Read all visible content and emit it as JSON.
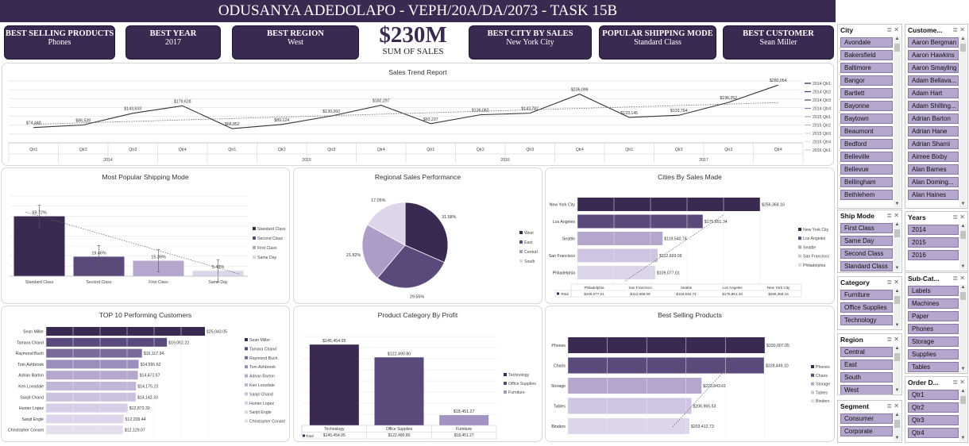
{
  "header": {
    "title": "ODUSANYA ADEDOLAPO - VEPH/20A/DA/2073 - TASK 15B"
  },
  "kpis": [
    {
      "label": "BEST SELLING PRODUCTS",
      "value": "Phones"
    },
    {
      "label": "BEST YEAR",
      "value": "2017"
    },
    {
      "label": "BEST REGION",
      "value": "West"
    },
    {
      "label": "BEST CITY BY SALES",
      "value": "New York City"
    },
    {
      "label": "POPULAR SHIPPING MODE",
      "value": "Standard Class"
    },
    {
      "label": "BEST CUSTOMER",
      "value": "Sean Miller"
    }
  ],
  "total_sales": {
    "value": "$230M",
    "label": "SUM OF SALES"
  },
  "colors": {
    "dark": "#3a2a52",
    "mid": "#5a4a7c",
    "light": "#b4a6cc",
    "pale": "#ddd6ea"
  },
  "chart_data": [
    {
      "type": "line",
      "title": "Sales Trend Report",
      "years": [
        "2014",
        "2015",
        "2016",
        "2017"
      ],
      "categories": [
        "Qtr1",
        "Qtr2",
        "Qtr3",
        "Qtr4",
        "Qtr1",
        "Qtr2",
        "Qtr3",
        "Qtr4",
        "Qtr1",
        "Qtr2",
        "Qtr3",
        "Qtr4",
        "Qtr1",
        "Qtr2",
        "Qtr3",
        "Qtr4"
      ],
      "values": [
        74448,
        86539,
        143633,
        179628,
        68852,
        89124,
        130260,
        182297,
        93237,
        136082,
        143787,
        236099,
        123145,
        133764,
        196252,
        280054
      ],
      "value_labels": [
        "$74,448",
        "$86,539",
        "$143,633",
        "$179,628",
        "$68,852",
        "$89,124",
        "$130,260",
        "$182,297",
        "$93,237",
        "$136,082",
        "$143,787",
        "$236,099",
        "$123,145",
        "$133,764",
        "$196,252",
        "$280,054"
      ],
      "legend": [
        "2014 Qtr1",
        "2014 Qtr2",
        "2014 Qtr3",
        "2014 Qtr4",
        "2015 Qtr1",
        "2015 Qtr2",
        "2015 Qtr3",
        "2015 Qtr4",
        "2016 Qtr1"
      ],
      "trendline": true,
      "grid": true
    },
    {
      "type": "bar",
      "title": "Most Popular Shipping Mode",
      "categories": [
        "Standard Class",
        "Second Class",
        "First Class",
        "Same Day"
      ],
      "values": [
        59.72,
        19.46,
        15.39,
        5.43
      ],
      "value_labels": [
        "59.72%",
        "19.46%",
        "15.39%",
        "5.43%"
      ],
      "legend": [
        "Standard Class",
        "Second Class",
        "First Class",
        "Same Day"
      ],
      "ylim": [
        0,
        80
      ],
      "trendline": true,
      "error_bars": true
    },
    {
      "type": "pie",
      "title": "Regional Sales Performance",
      "categories": [
        "West",
        "East",
        "Central",
        "South"
      ],
      "values": [
        31.58,
        29.55,
        21.82,
        17.05
      ],
      "value_labels": [
        "31.58%",
        "29.55%",
        "21.82%",
        "17.05%"
      ],
      "legend": [
        "West",
        "East",
        "Central",
        "South"
      ]
    },
    {
      "type": "bar",
      "title": "Cities By Sales Made",
      "orientation": "horizontal",
      "categories": [
        "New York City",
        "Los Angeles",
        "Seattle",
        "San Francisco",
        "Philadelphia"
      ],
      "values": [
        256368.16,
        175851.34,
        119540.74,
        112669.09,
        109077.01
      ],
      "value_labels": [
        "$256,368.16",
        "$175,851.34",
        "$119,540.74",
        "$112,669.09",
        "$109,077.01"
      ],
      "legend": [
        "New York City",
        "Los Angeles",
        "Seattle",
        "San Francisco",
        "Philadelphia"
      ],
      "table_header": [
        "Philadelphia",
        "San Francisco",
        "Seattle",
        "Los Angeles",
        "New York City"
      ],
      "table_row_label": "Total",
      "table_values": [
        "$109,077.01",
        "$112,669.09",
        "$119,540.74",
        "$175,851.34",
        "$256,368.16"
      ],
      "trendline": true
    },
    {
      "type": "bar",
      "title": "TOP 10 Performing Customers",
      "orientation": "horizontal",
      "categories": [
        "Sean Miller",
        "Tamara Chand",
        "Raymond Buch",
        "Tom Ashbrook",
        "Adrian Barton",
        "Ken Lonsdale",
        "Sanjit Chand",
        "Hunter Lopez",
        "Sanjit Engle",
        "Christopher Conant"
      ],
      "values": [
        25043.05,
        19052.22,
        15117.34,
        14595.62,
        14473.57,
        14175.23,
        14142.33,
        12873.3,
        12209.44,
        12129.07
      ],
      "value_labels": [
        "$25,043.05",
        "$19,052.22",
        "$15,117.34",
        "$14,595.62",
        "$14,473.57",
        "$14,175.23",
        "$14,142.33",
        "$12,873.30",
        "$12,209.44",
        "$12,129.07"
      ],
      "legend": [
        "Sean Miller",
        "Tamara Chand",
        "Raymond Buch",
        "Tom Ashbrook",
        "Adrian Barton",
        "Ken Lonsdale",
        "Sanjit Chand",
        "Hunter Lopez",
        "Sanjit Engle",
        "Christopher Conant"
      ]
    },
    {
      "type": "bar",
      "title": "Product Category By Profit",
      "categories": [
        "Technology",
        "Office Supplies",
        "Furniture"
      ],
      "values": [
        145454.95,
        122490.8,
        18451.27
      ],
      "value_labels": [
        "$145,454.95",
        "$122,490.80",
        "$18,451.27"
      ],
      "legend": [
        "Technology",
        "Office Supplies",
        "Furniture"
      ],
      "table_row_label": "Total",
      "table_values": [
        "$145,454.95",
        "$122,490.80",
        "$18,451.27"
      ]
    },
    {
      "type": "bar",
      "title": "Best Selling Products",
      "orientation": "horizontal",
      "categories": [
        "Phones",
        "Chairs",
        "Storage",
        "Tables",
        "Binders"
      ],
      "values": [
        330007.05,
        328449.1,
        223843.61,
        206965.53,
        203412.73
      ],
      "value_labels": [
        "$330,007.05",
        "$328,449.10",
        "$223,843.61",
        "$206,965.53",
        "$203,412.73"
      ],
      "legend": [
        "Phones",
        "Chairs",
        "Storage",
        "Tables",
        "Binders"
      ],
      "trendline": true
    }
  ],
  "slicers": {
    "city": {
      "title": "City",
      "items": [
        "Avondale",
        "Bakersfield",
        "Baltimore",
        "Bangor",
        "Bartlett",
        "Bayonne",
        "Baytown",
        "Beaumont",
        "Bedford",
        "Belleville",
        "Bellevue",
        "Bellingham",
        "Bethlehem"
      ]
    },
    "customer": {
      "title": "Custome...",
      "items": [
        "Aaron Bergman",
        "Aaron Hawkins",
        "Aaron Smayling",
        "Adam Bellava...",
        "Adam Hart",
        "Adam Shilling...",
        "Adrian Barton",
        "Adrian Hane",
        "Adrian Shami",
        "Aimee Bixby",
        "Alan Barnes",
        "Alan Doming...",
        "Alan Haines"
      ]
    },
    "ship_mode": {
      "title": "Ship Mode",
      "items": [
        "First Class",
        "Same Day",
        "Second Class",
        "Standard Class"
      ]
    },
    "years": {
      "title": "Years",
      "items": [
        "2014",
        "2015",
        "2016"
      ]
    },
    "category": {
      "title": "Category",
      "items": [
        "Furniture",
        "Office Supplies",
        "Technology"
      ]
    },
    "sub_category": {
      "title": "Sub-Cat...",
      "items": [
        "Labels",
        "Machines",
        "Paper",
        "Phones",
        "Storage",
        "Supplies",
        "Tables"
      ]
    },
    "region": {
      "title": "Region",
      "items": [
        "Central",
        "East",
        "South",
        "West"
      ]
    },
    "order_date": {
      "title": "Order D...",
      "items": [
        "Qtr1",
        "Qtr2",
        "Qtr3",
        "Qtr4"
      ]
    },
    "segment": {
      "title": "Segment",
      "items": [
        "Consumer",
        "Corporate"
      ]
    }
  }
}
